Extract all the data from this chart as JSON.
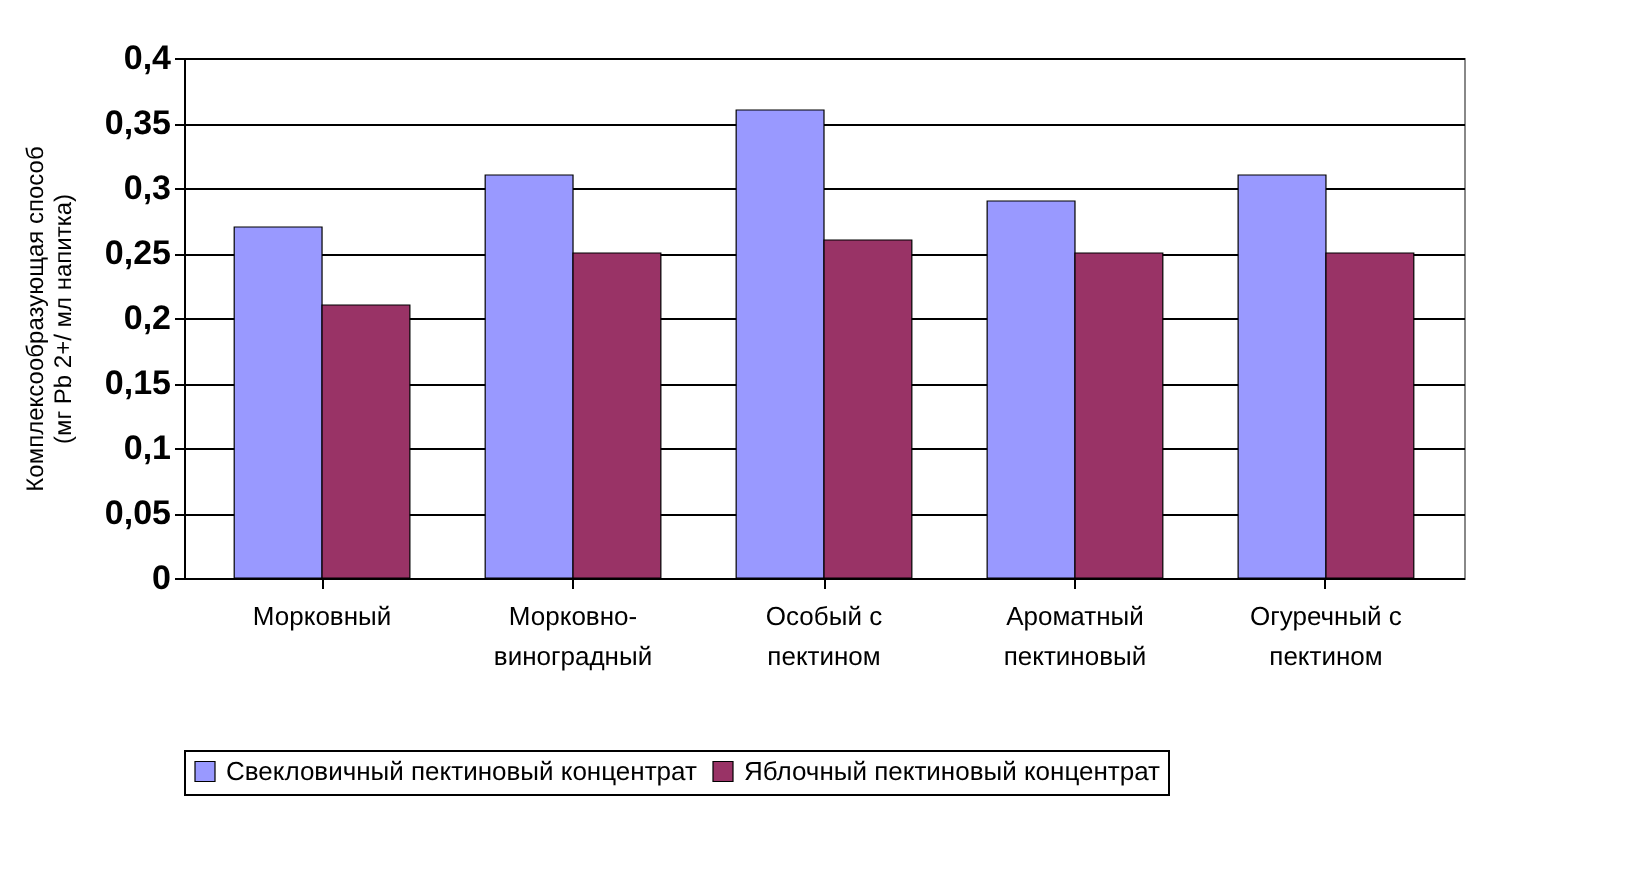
{
  "chart_data": {
    "type": "bar",
    "ylabel": "Комплексообразующая способ\n(мг Pb 2+/ мл напитка)",
    "categories": [
      "Морковный",
      "Морковно-\nвиноградный",
      "Особый с\nпектином",
      "Ароматный\nпектиновый",
      "Огуречный с\nпектином"
    ],
    "series": [
      {
        "name": "Свекловичный пектиновый концентрат",
        "color": "#9999ff",
        "values": [
          0.27,
          0.31,
          0.36,
          0.29,
          0.31
        ]
      },
      {
        "name": "Яблочный пектиновый концентрат",
        "color": "#993366",
        "values": [
          0.21,
          0.25,
          0.26,
          0.25,
          0.25
        ]
      }
    ],
    "ylim": [
      0,
      0.4
    ],
    "yticks": [
      {
        "value": 0,
        "label": "0"
      },
      {
        "value": 0.05,
        "label": "0,05"
      },
      {
        "value": 0.1,
        "label": "0,1"
      },
      {
        "value": 0.15,
        "label": "0,15"
      },
      {
        "value": 0.2,
        "label": "0,2"
      },
      {
        "value": 0.25,
        "label": "0,25"
      },
      {
        "value": 0.3,
        "label": "0,3"
      },
      {
        "value": 0.35,
        "label": "0,35"
      },
      {
        "value": 0.4,
        "label": "0,4"
      }
    ],
    "grid": "y",
    "legend": "bottom"
  }
}
